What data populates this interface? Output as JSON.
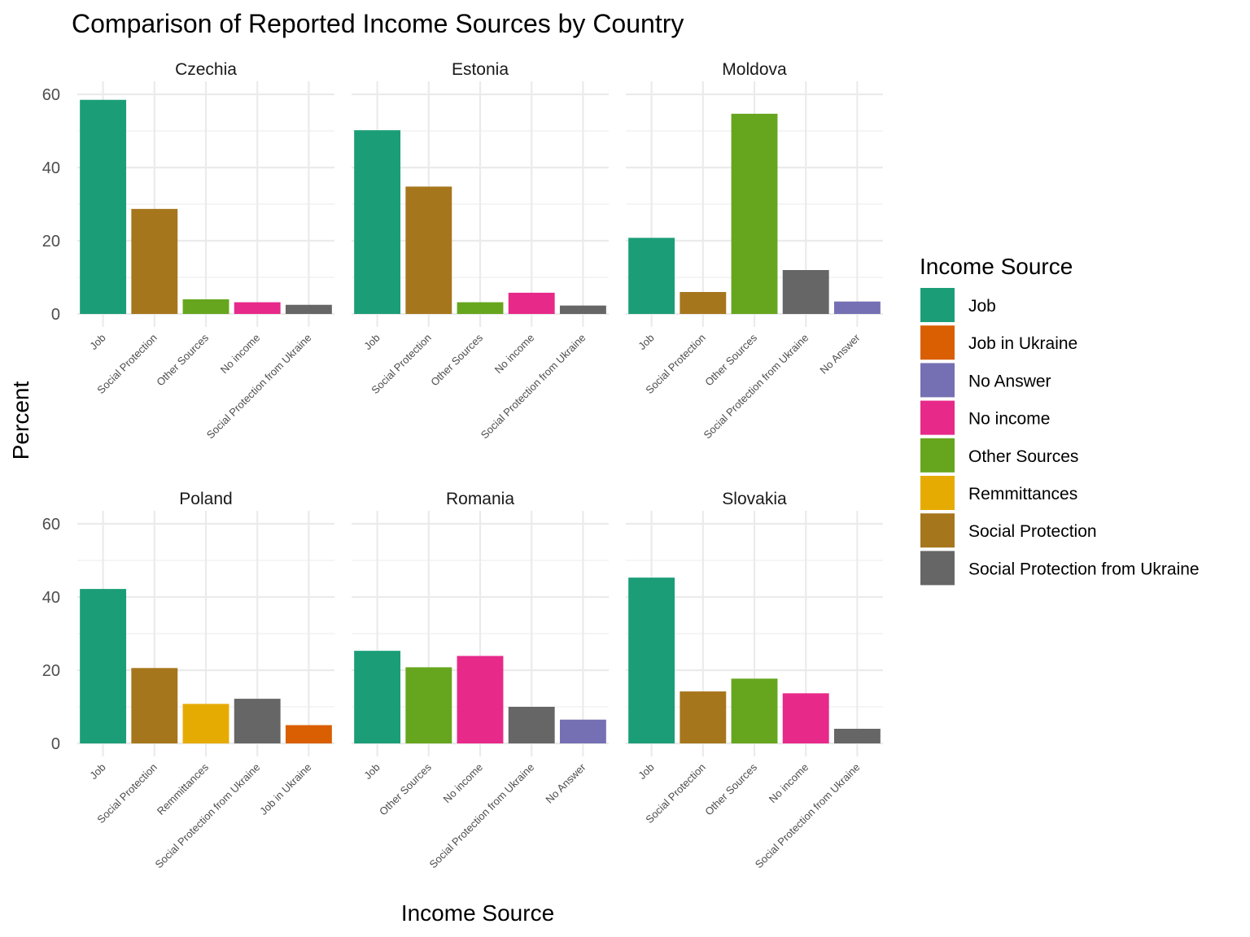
{
  "chart_data": {
    "type": "bar",
    "title": "Comparison of Reported Income Sources by Country",
    "xlabel": "Income Source",
    "ylabel": "Percent",
    "ylim": [
      0,
      60
    ],
    "yticks": [
      0,
      20,
      40,
      60
    ],
    "grid": true,
    "legend": {
      "title": "Income Source",
      "placement": "right",
      "entries": [
        {
          "name": "Job",
          "color": "#1b9e77"
        },
        {
          "name": "Job in Ukraine",
          "color": "#d95f02"
        },
        {
          "name": "No Answer",
          "color": "#7570b3"
        },
        {
          "name": "No income",
          "color": "#e7298a"
        },
        {
          "name": "Other Sources",
          "color": "#66a61e"
        },
        {
          "name": "Remmittances",
          "color": "#e6ab02"
        },
        {
          "name": "Social Protection",
          "color": "#a6761d"
        },
        {
          "name": "Social Protection from Ukraine",
          "color": "#666666"
        }
      ]
    },
    "facets": [
      {
        "country": "Czechia",
        "categories": [
          "Job",
          "Social Protection",
          "Other Sources",
          "No income",
          "Social Protection from Ukraine"
        ],
        "values": [
          58.5,
          28.7,
          4.0,
          3.2,
          2.5
        ]
      },
      {
        "country": "Estonia",
        "categories": [
          "Job",
          "Social Protection",
          "Other Sources",
          "No income",
          "Social Protection from Ukraine"
        ],
        "values": [
          50.2,
          34.8,
          3.2,
          5.8,
          2.3
        ]
      },
      {
        "country": "Moldova",
        "categories": [
          "Job",
          "Social Protection",
          "Other Sources",
          "Social Protection from Ukraine",
          "No Answer"
        ],
        "values": [
          20.8,
          6.0,
          54.7,
          12.0,
          3.4
        ]
      },
      {
        "country": "Poland",
        "categories": [
          "Job",
          "Social Protection",
          "Remmittances",
          "Social Protection from Ukraine",
          "Job in Ukraine"
        ],
        "values": [
          42.2,
          20.6,
          10.8,
          12.2,
          5.0
        ]
      },
      {
        "country": "Romania",
        "categories": [
          "Job",
          "Other Sources",
          "No income",
          "Social Protection from Ukraine",
          "No Answer"
        ],
        "values": [
          25.3,
          20.8,
          23.9,
          10.0,
          6.5
        ]
      },
      {
        "country": "Slovakia",
        "categories": [
          "Job",
          "Social Protection",
          "Other Sources",
          "No income",
          "Social Protection from Ukraine"
        ],
        "values": [
          45.3,
          14.2,
          17.7,
          13.7,
          4.0
        ]
      }
    ]
  }
}
